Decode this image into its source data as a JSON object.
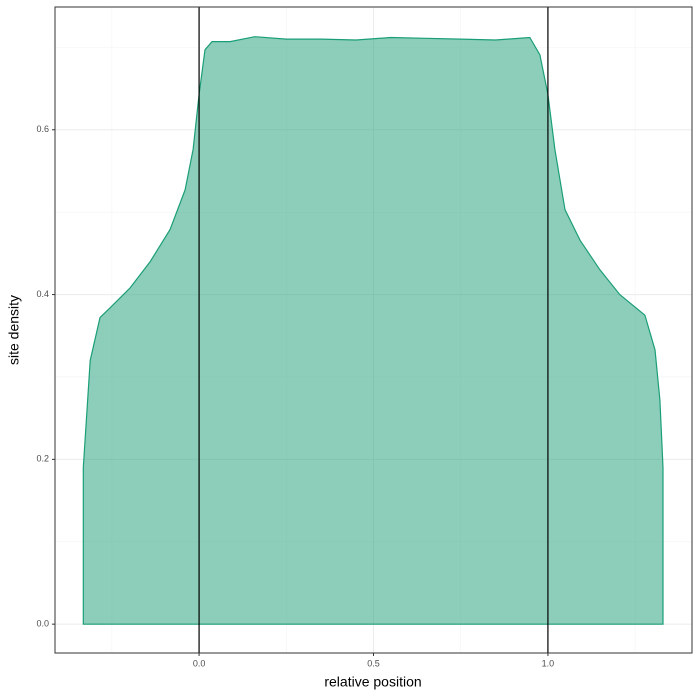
{
  "chart_data": {
    "type": "area",
    "x_label": "relative position",
    "y_label": "site density",
    "x": [
      -0.332,
      -0.332,
      -0.312,
      -0.284,
      -0.255,
      -0.198,
      -0.14,
      -0.083,
      -0.04,
      -0.017,
      0,
      0.017,
      0.037,
      0.089,
      0.16,
      0.25,
      0.35,
      0.45,
      0.55,
      0.65,
      0.75,
      0.85,
      0.948,
      0.977,
      1.0,
      1.02,
      1.049,
      1.092,
      1.149,
      1.206,
      1.278,
      1.307,
      1.321,
      1.33,
      1.33
    ],
    "values": [
      0,
      0.19,
      0.32,
      0.372,
      0.384,
      0.408,
      0.44,
      0.479,
      0.527,
      0.576,
      0.643,
      0.697,
      0.707,
      0.707,
      0.713,
      0.71,
      0.71,
      0.709,
      0.712,
      0.711,
      0.71,
      0.709,
      0.712,
      0.691,
      0.643,
      0.576,
      0.503,
      0.466,
      0.43,
      0.4,
      0.375,
      0.333,
      0.272,
      0.19,
      0
    ],
    "color": "#1b9e77",
    "xlim": [
      -0.413,
      1.413
    ],
    "ylim": [
      -0.035,
      0.749
    ],
    "xticks": [
      {
        "value": 0,
        "label": "0.0"
      },
      0.5,
      {
        "value": 1,
        "label": "1.0"
      }
    ],
    "yticks": [
      {
        "value": 0,
        "label": "0.0"
      },
      0.2,
      0.4,
      0.6
    ],
    "x_minor_grid": [
      -0.25,
      0.25,
      0.75,
      1.25
    ],
    "y_minor_grid": [
      0.1,
      0.3,
      0.5,
      0.7
    ],
    "vlines": [
      0,
      1
    ],
    "grid": true
  }
}
